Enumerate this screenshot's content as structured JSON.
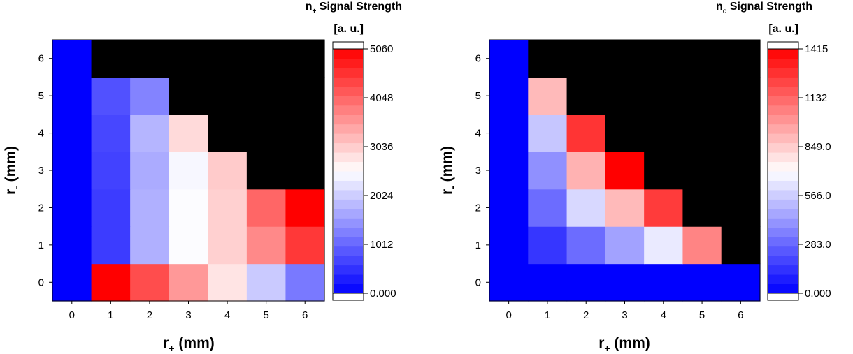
{
  "chart_data": [
    {
      "type": "heatmap",
      "title_main": "n",
      "title_sub": "+",
      "title_rest": " Signal Strength",
      "units": "[a. u.]",
      "xlabel_main": "r",
      "xlabel_sub": "+",
      "xlabel_rest": " (mm)",
      "ylabel_main": "r",
      "ylabel_sub": "-",
      "ylabel_rest": " (mm)",
      "x_ticks": [
        "0",
        "1",
        "2",
        "3",
        "4",
        "5",
        "6"
      ],
      "y_ticks": [
        "0",
        "1",
        "2",
        "3",
        "4",
        "5",
        "6"
      ],
      "colorbar_ticks": [
        "0.000",
        "1012",
        "2024",
        "3036",
        "4048",
        "5060"
      ],
      "colorbar_tick_values": [
        0,
        1012,
        2024,
        3036,
        4048,
        5060
      ],
      "vmin": 0,
      "vmax": 5060,
      "colors": {
        "low": "#0000ff",
        "mid": "#ffffff",
        "high": "#ff0000",
        "missing": "#000000"
      },
      "cells": [
        [
          0,
          5060,
          4300,
          3550,
          2800,
          2000,
          1200
        ],
        [
          0,
          600,
          1750,
          2500,
          3000,
          3700,
          4500
        ],
        [
          0,
          600,
          1750,
          2500,
          3000,
          4050,
          5060
        ],
        [
          0,
          650,
          1700,
          2450,
          3050,
          null,
          null
        ],
        [
          0,
          700,
          1800,
          2900,
          null,
          null,
          null
        ],
        [
          0,
          800,
          1300,
          null,
          null,
          null,
          null
        ],
        [
          0,
          null,
          null,
          null,
          null,
          null,
          null
        ]
      ]
    },
    {
      "type": "heatmap",
      "title_main": "n",
      "title_sub": "c",
      "title_rest": " Signal Strength",
      "units": "[a. u.]",
      "xlabel_main": "r",
      "xlabel_sub": "+",
      "xlabel_rest": " (mm)",
      "ylabel_main": "r",
      "ylabel_sub": "-",
      "ylabel_rest": " (mm)",
      "x_ticks": [
        "0",
        "1",
        "2",
        "3",
        "4",
        "5",
        "6"
      ],
      "y_ticks": [
        "0",
        "1",
        "2",
        "3",
        "4",
        "5",
        "6"
      ],
      "colorbar_ticks": [
        "0.000",
        "283.0",
        "566.0",
        "849.0",
        "1132",
        "1415"
      ],
      "colorbar_tick_values": [
        0,
        283,
        566,
        849,
        1132,
        1415
      ],
      "vmin": 0,
      "vmax": 1415,
      "colors": {
        "low": "#0000ff",
        "mid": "#ffffff",
        "high": "#ff0000",
        "missing": "#000000"
      },
      "cells": [
        [
          0,
          0,
          0,
          0,
          0,
          0,
          0
        ],
        [
          0,
          150,
          300,
          450,
          650,
          1050,
          null
        ],
        [
          0,
          300,
          600,
          900,
          1250,
          null,
          null
        ],
        [
          0,
          400,
          920,
          1415,
          null,
          null,
          null
        ],
        [
          0,
          550,
          1270,
          null,
          null,
          null,
          null
        ],
        [
          0,
          900,
          null,
          null,
          null,
          null,
          null
        ],
        [
          0,
          null,
          null,
          null,
          null,
          null,
          null
        ]
      ]
    }
  ]
}
